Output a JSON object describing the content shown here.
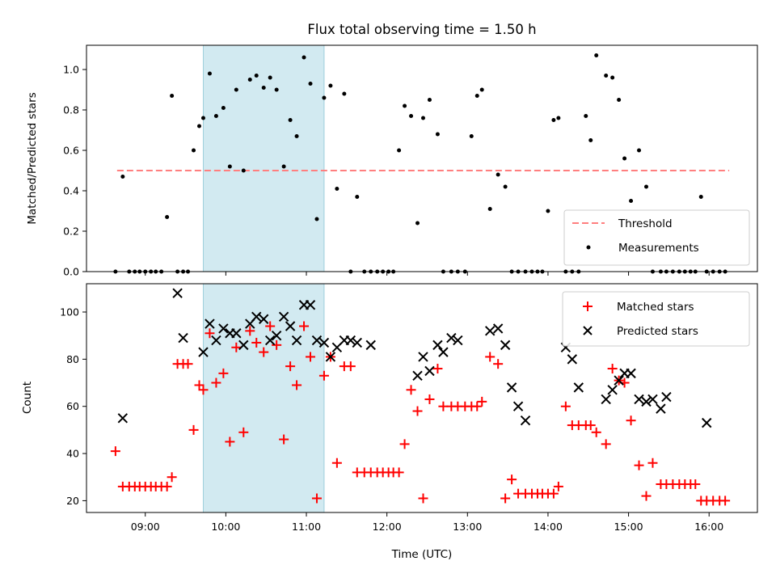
{
  "chart_data": {
    "title": "Flux total observing time = 1.50 h",
    "xlabel": "Time (UTC)",
    "x_ticks": [
      "09:00",
      "10:00",
      "11:00",
      "12:00",
      "13:00",
      "14:00",
      "15:00",
      "16:00"
    ],
    "x_tick_hours": [
      9,
      10,
      11,
      12,
      13,
      14,
      15,
      16
    ],
    "xlim_hours": [
      8.27,
      16.6
    ],
    "highlight_span_hours": [
      9.72,
      11.22
    ],
    "colors": {
      "threshold": "#ff7f7f",
      "measurements": "#000000",
      "matched": "#ff0000",
      "predicted": "#000000",
      "highlight": "#add8e6"
    },
    "top": {
      "type": "scatter",
      "ylabel": "Matched/Predicted stars",
      "ylim": [
        0,
        1.12
      ],
      "y_ticks": [
        "0.0",
        "0.2",
        "0.4",
        "0.6",
        "0.8",
        "1.0"
      ],
      "y_tick_values": [
        0,
        0.2,
        0.4,
        0.6,
        0.8,
        1.0
      ],
      "threshold": {
        "name": "Threshold",
        "value": 0.5,
        "x_range_hours": [
          8.65,
          16.25
        ]
      },
      "measurements": {
        "name": "Measurements",
        "x": [
          8.63,
          8.72,
          8.8,
          8.87,
          8.93,
          9.0,
          9.07,
          9.13,
          9.2,
          9.27,
          9.33,
          9.4,
          9.47,
          9.53,
          9.6,
          9.67,
          9.72,
          9.8,
          9.88,
          9.97,
          10.05,
          10.13,
          10.22,
          10.3,
          10.38,
          10.47,
          10.55,
          10.63,
          10.72,
          10.8,
          10.88,
          10.97,
          11.05,
          11.13,
          11.22,
          11.3,
          11.38,
          11.47,
          11.55,
          11.63,
          11.72,
          11.8,
          11.88,
          11.95,
          12.02,
          12.08,
          12.15,
          12.22,
          12.3,
          12.38,
          12.45,
          12.53,
          12.63,
          12.7,
          12.8,
          12.88,
          12.97,
          13.05,
          13.12,
          13.18,
          13.28,
          13.38,
          13.47,
          13.55,
          13.63,
          13.72,
          13.8,
          13.87,
          13.93,
          14.0,
          14.07,
          14.13,
          14.22,
          14.3,
          14.38,
          14.47,
          14.53,
          14.6,
          14.72,
          14.8,
          14.88,
          14.95,
          15.03,
          15.13,
          15.22,
          15.3,
          15.4,
          15.47,
          15.55,
          15.63,
          15.7,
          15.77,
          15.83,
          15.9,
          15.97,
          16.05,
          16.13,
          16.2
        ],
        "y": [
          0,
          0.47,
          0,
          0,
          0,
          0,
          0,
          0,
          0,
          0.27,
          0.87,
          0,
          0,
          0,
          0.6,
          0.72,
          0.76,
          0.98,
          0.77,
          0.81,
          0.52,
          0.9,
          0.5,
          0.95,
          0.97,
          0.91,
          0.96,
          0.9,
          0.52,
          0.75,
          0.67,
          1.06,
          0.93,
          0.26,
          0.86,
          0.92,
          0.41,
          0.88,
          0,
          0.37,
          0,
          0,
          0,
          0,
          0,
          0,
          0.6,
          0.82,
          0.77,
          0.24,
          0.76,
          0.85,
          0.68,
          0,
          0,
          0,
          0,
          0.67,
          0.87,
          0.9,
          0.31,
          0.48,
          0.42,
          0,
          0,
          0,
          0,
          0,
          0,
          0.3,
          0.75,
          0.76,
          0,
          0,
          0,
          0.77,
          0.65,
          1.07,
          0.97,
          0.96,
          0.85,
          0.56,
          0.35,
          0.6,
          0.42,
          0,
          0,
          0,
          0,
          0,
          0,
          0,
          0,
          0.37,
          0,
          0,
          0,
          0
        ]
      },
      "legend_position": "lower right"
    },
    "bottom": {
      "type": "scatter",
      "ylabel": "Count",
      "ylim": [
        15,
        112
      ],
      "y_ticks": [
        "20",
        "40",
        "60",
        "80",
        "100"
      ],
      "y_tick_values": [
        20,
        40,
        60,
        80,
        100
      ],
      "series": [
        {
          "name": "Matched stars",
          "marker": "+",
          "x": [
            8.63,
            8.72,
            8.8,
            8.87,
            8.93,
            9.0,
            9.07,
            9.13,
            9.2,
            9.27,
            9.33,
            9.4,
            9.47,
            9.53,
            9.6,
            9.67,
            9.72,
            9.8,
            9.88,
            9.97,
            10.05,
            10.13,
            10.22,
            10.3,
            10.38,
            10.47,
            10.55,
            10.63,
            10.72,
            10.8,
            10.88,
            10.97,
            11.05,
            11.13,
            11.22,
            11.3,
            11.38,
            11.47,
            11.55,
            11.63,
            11.72,
            11.8,
            11.88,
            11.95,
            12.02,
            12.08,
            12.15,
            12.22,
            12.3,
            12.38,
            12.45,
            12.53,
            12.63,
            12.7,
            12.8,
            12.88,
            12.97,
            13.05,
            13.12,
            13.18,
            13.28,
            13.38,
            13.47,
            13.55,
            13.63,
            13.72,
            13.8,
            13.87,
            13.93,
            14.0,
            14.07,
            14.13,
            14.22,
            14.3,
            14.38,
            14.47,
            14.53,
            14.6,
            14.72,
            14.8,
            14.88,
            14.95,
            15.03,
            15.13,
            15.22,
            15.3,
            15.4,
            15.47,
            15.55,
            15.63,
            15.7,
            15.77,
            15.83,
            15.9,
            15.97,
            16.05,
            16.13,
            16.2
          ],
          "y": [
            41,
            26,
            26,
            26,
            26,
            26,
            26,
            26,
            26,
            26,
            30,
            78,
            78,
            78,
            50,
            69,
            67,
            91,
            70,
            74,
            45,
            85,
            49,
            92,
            87,
            83,
            94,
            86,
            46,
            77,
            69,
            94,
            81,
            21,
            73,
            81,
            36,
            77,
            77,
            32,
            32,
            32,
            32,
            32,
            32,
            32,
            32,
            44,
            67,
            58,
            21,
            63,
            76,
            60,
            60,
            60,
            60,
            60,
            60,
            62,
            81,
            78,
            21,
            29,
            23,
            23,
            23,
            23,
            23,
            23,
            23,
            26,
            60,
            52,
            52,
            52,
            52,
            49,
            44,
            76,
            71,
            70,
            54,
            35,
            22,
            36,
            27,
            27,
            27,
            27,
            27,
            27,
            27,
            20,
            20,
            20,
            20,
            20
          ]
        },
        {
          "name": "Predicted stars",
          "marker": "x",
          "x": [
            8.72,
            9.4,
            9.47,
            9.72,
            9.8,
            9.88,
            9.97,
            10.05,
            10.13,
            10.22,
            10.3,
            10.38,
            10.47,
            10.55,
            10.63,
            10.72,
            10.8,
            10.88,
            10.97,
            11.05,
            11.13,
            11.22,
            11.3,
            11.38,
            11.47,
            11.55,
            11.63,
            11.8,
            12.38,
            12.45,
            12.53,
            12.63,
            12.7,
            12.8,
            12.88,
            13.28,
            13.38,
            13.47,
            13.55,
            13.63,
            13.72,
            14.22,
            14.3,
            14.38,
            14.72,
            14.8,
            14.88,
            14.95,
            15.03,
            15.13,
            15.22,
            15.3,
            15.4,
            15.47,
            15.97
          ],
          "y": [
            55,
            108,
            89,
            83,
            95,
            88,
            93,
            91,
            91,
            86,
            95,
            98,
            97,
            88,
            90,
            98,
            94,
            88,
            103,
            103,
            88,
            87,
            81,
            85,
            88,
            88,
            87,
            86,
            73,
            81,
            75,
            86,
            83,
            89,
            88,
            92,
            93,
            86,
            68,
            60,
            54,
            85,
            80,
            68,
            63,
            67,
            71,
            74,
            74,
            63,
            62,
            63,
            59,
            64,
            53
          ]
        }
      ],
      "legend_position": "upper right"
    }
  }
}
